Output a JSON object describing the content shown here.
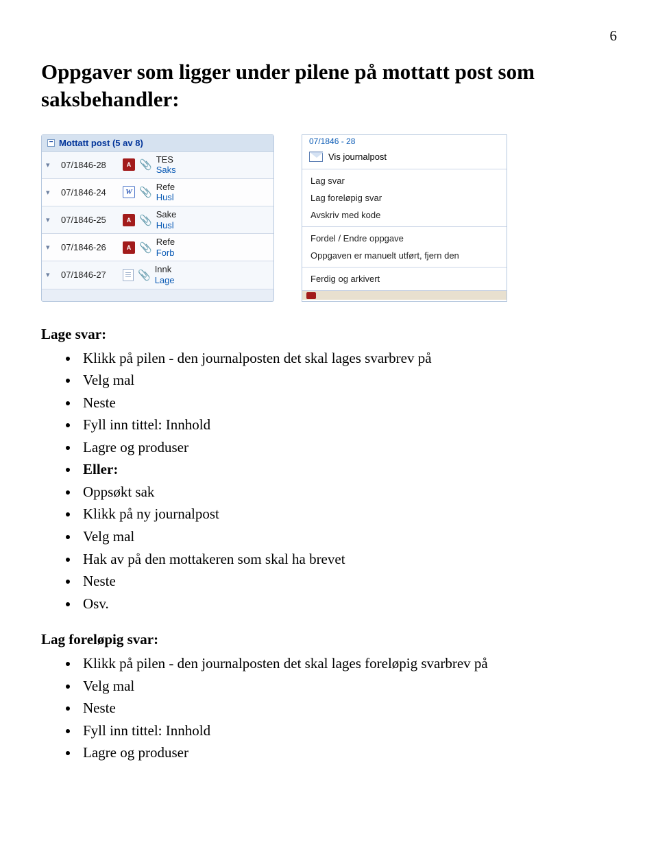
{
  "page_number": "6",
  "heading": "Oppgaver som ligger under pilene på mottatt post som saksbehandler:",
  "left_panel": {
    "group_title": "Mottatt post (5 av 8)",
    "rows": [
      {
        "id": "07/1846-28",
        "icon": "pdf",
        "line1": "TES",
        "line2": "Saks"
      },
      {
        "id": "07/1846-24",
        "icon": "word",
        "line1": "Refe",
        "line2": "Husl"
      },
      {
        "id": "07/1846-25",
        "icon": "pdf",
        "line1": "Sake",
        "line2": "Husl"
      },
      {
        "id": "07/1846-26",
        "icon": "pdf",
        "line1": "Refe",
        "line2": "Forb"
      },
      {
        "id": "07/1846-27",
        "icon": "doc",
        "line1": "Innk",
        "line2": "Lage"
      }
    ]
  },
  "context_menu": {
    "header_fragment": "07/1846 - 28",
    "top": "Vis journalpost",
    "group1": [
      "Lag svar",
      "Lag foreløpig svar",
      "Avskriv med kode"
    ],
    "group2": [
      "Fordel / Endre oppgave",
      "Oppgaven er manuelt utført, fjern den"
    ],
    "group3": [
      "Ferdig og arkivert"
    ]
  },
  "section1": {
    "label": "Lage svar:",
    "items": [
      "Klikk på pilen - den journalposten det skal lages svarbrev på",
      "Velg mal",
      "Neste",
      "Fyll inn tittel: Innhold",
      "Lagre og produser",
      "Eller:",
      "Oppsøkt sak",
      "Klikk på ny journalpost",
      "Velg mal",
      "Hak av på den mottakeren som skal ha brevet",
      "Neste",
      "Osv."
    ],
    "bold_index": 5
  },
  "section2": {
    "label": "Lag foreløpig svar:",
    "items": [
      "Klikk på pilen - den journalposten det skal lages foreløpig svarbrev på",
      "Velg mal",
      "Neste",
      "Fyll inn tittel: Innhold",
      "Lagre og produser"
    ]
  }
}
